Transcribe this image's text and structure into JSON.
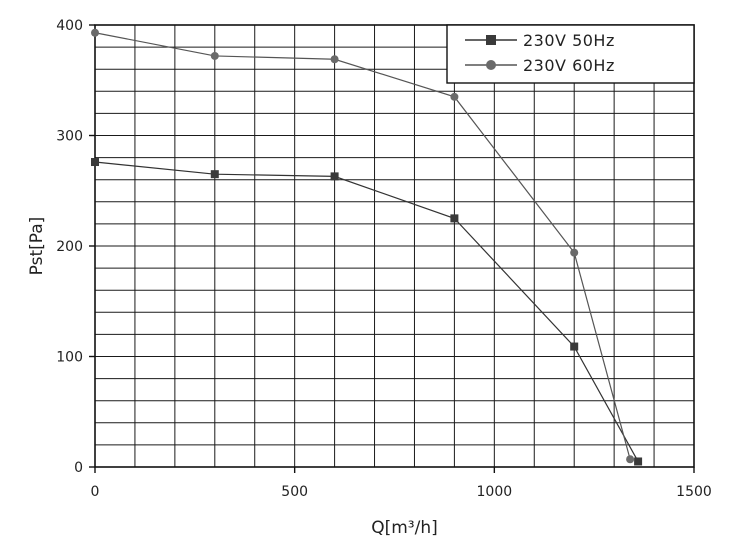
{
  "chart_data": {
    "type": "line",
    "xlabel": "Q[m³/h]",
    "ylabel": "Pst[Pa]",
    "xlim": [
      0,
      1500
    ],
    "ylim": [
      0,
      400
    ],
    "x_ticks": [
      0,
      500,
      1000,
      1500
    ],
    "y_ticks": [
      0,
      100,
      200,
      300,
      400
    ],
    "x_tick_labels": [
      "0",
      "500",
      "1000",
      "1500"
    ],
    "y_tick_labels": [
      "0",
      "100",
      "200",
      "300",
      "400"
    ],
    "x_minor_step": 100,
    "y_minor_step": 20,
    "grid": true,
    "legend_position": "top-right",
    "series": [
      {
        "name": "230V 50Hz",
        "marker": "square",
        "color": "#333333",
        "x": [
          0,
          300,
          600,
          900,
          1200,
          1360
        ],
        "y": [
          276,
          265,
          263,
          225,
          109,
          5
        ]
      },
      {
        "name": "230V 60Hz",
        "marker": "circle",
        "color": "#555555",
        "x": [
          0,
          300,
          600,
          900,
          1200,
          1340
        ],
        "y": [
          393,
          372,
          369,
          335,
          194,
          7
        ]
      }
    ]
  }
}
